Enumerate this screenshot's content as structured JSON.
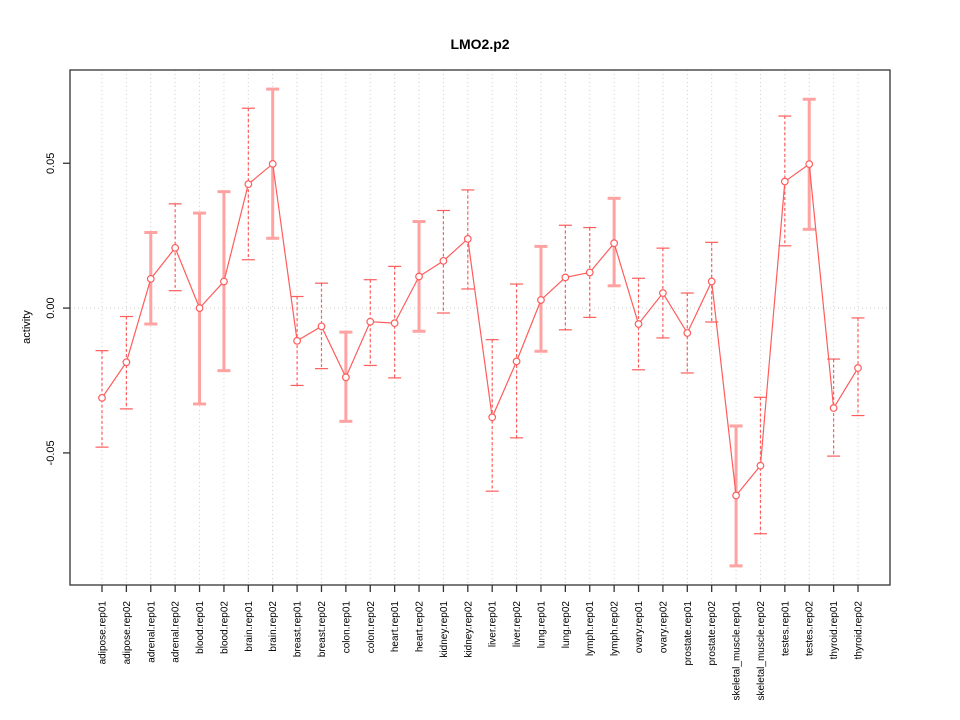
{
  "title": "LMO2.p2",
  "chart_data": {
    "type": "line",
    "title": "LMO2.p2",
    "xlabel": "",
    "ylabel": "activity",
    "ylim": [
      -0.0956,
      0.0822
    ],
    "yticks": [
      {
        "value": 0.05,
        "label": "0.05"
      },
      {
        "value": 0.0,
        "label": "0.00"
      },
      {
        "value": -0.05,
        "label": "-0.05"
      }
    ],
    "legend": "none",
    "grid": {
      "vertical": "dotted line at every category",
      "horizontal": "dotted line at 0 only"
    },
    "colors": {
      "series": "#ff5c5c",
      "thick_bar": "#ffa2a2",
      "grid": "#cfcfcf",
      "axis": "#333333",
      "text": "#000000",
      "marker_fill": "#ffffff"
    },
    "error_bar_styles_note": "bar_style dashed = thin dashed red whiskers; thick = wide solid pink whiskers",
    "points": [
      {
        "category": "adipose.rep01",
        "value": -0.031,
        "lower": -0.048,
        "upper": -0.0147,
        "bar_style": "dashed"
      },
      {
        "category": "adipose.rep02",
        "value": -0.0187,
        "lower": -0.0348,
        "upper": -0.0029,
        "bar_style": "dashed"
      },
      {
        "category": "adrenal.rep01",
        "value": 0.0101,
        "lower": -0.0055,
        "upper": 0.0261,
        "bar_style": "thick"
      },
      {
        "category": "adrenal.rep02",
        "value": 0.0208,
        "lower": 0.006,
        "upper": 0.036,
        "bar_style": "dashed"
      },
      {
        "category": "blood.rep01",
        "value": 0.0,
        "lower": -0.0331,
        "upper": 0.0328,
        "bar_style": "thick"
      },
      {
        "category": "blood.rep02",
        "value": 0.0092,
        "lower": -0.0216,
        "upper": 0.0402,
        "bar_style": "thick"
      },
      {
        "category": "brain.rep01",
        "value": 0.0428,
        "lower": 0.0167,
        "upper": 0.069,
        "bar_style": "dashed"
      },
      {
        "category": "brain.rep02",
        "value": 0.0498,
        "lower": 0.0241,
        "upper": 0.0756,
        "bar_style": "thick"
      },
      {
        "category": "breast.rep01",
        "value": -0.0113,
        "lower": -0.0267,
        "upper": 0.004,
        "bar_style": "dashed"
      },
      {
        "category": "breast.rep02",
        "value": -0.0063,
        "lower": -0.0209,
        "upper": 0.0086,
        "bar_style": "dashed"
      },
      {
        "category": "colon.rep01",
        "value": -0.0239,
        "lower": -0.0391,
        "upper": -0.0083,
        "bar_style": "thick"
      },
      {
        "category": "colon.rep02",
        "value": -0.0047,
        "lower": -0.0198,
        "upper": 0.0098,
        "bar_style": "dashed"
      },
      {
        "category": "heart.rep01",
        "value": -0.0052,
        "lower": -0.0241,
        "upper": 0.0144,
        "bar_style": "dashed"
      },
      {
        "category": "heart.rep02",
        "value": 0.0109,
        "lower": -0.008,
        "upper": 0.0299,
        "bar_style": "thick"
      },
      {
        "category": "kidney.rep01",
        "value": 0.0163,
        "lower": -0.0017,
        "upper": 0.0337,
        "bar_style": "dashed"
      },
      {
        "category": "kidney.rep02",
        "value": 0.0239,
        "lower": 0.0066,
        "upper": 0.0408,
        "bar_style": "dashed"
      },
      {
        "category": "liver.rep01",
        "value": -0.0377,
        "lower": -0.0632,
        "upper": -0.0109,
        "bar_style": "dashed"
      },
      {
        "category": "liver.rep02",
        "value": -0.0184,
        "lower": -0.0448,
        "upper": 0.0083,
        "bar_style": "dashed"
      },
      {
        "category": "lung.rep01",
        "value": 0.0028,
        "lower": -0.0149,
        "upper": 0.0213,
        "bar_style": "thick"
      },
      {
        "category": "lung.rep02",
        "value": 0.0106,
        "lower": -0.0075,
        "upper": 0.0286,
        "bar_style": "dashed"
      },
      {
        "category": "lymph.rep01",
        "value": 0.0123,
        "lower": -0.0032,
        "upper": 0.0278,
        "bar_style": "dashed"
      },
      {
        "category": "lymph.rep02",
        "value": 0.0224,
        "lower": 0.0077,
        "upper": 0.0379,
        "bar_style": "thick"
      },
      {
        "category": "ovary.rep01",
        "value": -0.0055,
        "lower": -0.0213,
        "upper": 0.0103,
        "bar_style": "dashed"
      },
      {
        "category": "ovary.rep02",
        "value": 0.0052,
        "lower": -0.0103,
        "upper": 0.0207,
        "bar_style": "dashed"
      },
      {
        "category": "prostate.rep01",
        "value": -0.0086,
        "lower": -0.0224,
        "upper": 0.0052,
        "bar_style": "dashed"
      },
      {
        "category": "prostate.rep02",
        "value": 0.0092,
        "lower": -0.0048,
        "upper": 0.0227,
        "bar_style": "dashed"
      },
      {
        "category": "skeletal_muscle.rep01",
        "value": -0.0647,
        "lower": -0.089,
        "upper": -0.0407,
        "bar_style": "thick"
      },
      {
        "category": "skeletal_muscle.rep02",
        "value": -0.0544,
        "lower": -0.0779,
        "upper": -0.0308,
        "bar_style": "dashed"
      },
      {
        "category": "testes.rep01",
        "value": 0.0437,
        "lower": 0.0215,
        "upper": 0.0663,
        "bar_style": "dashed"
      },
      {
        "category": "testes.rep02",
        "value": 0.0497,
        "lower": 0.0272,
        "upper": 0.0721,
        "bar_style": "thick"
      },
      {
        "category": "thyroid.rep01",
        "value": -0.0345,
        "lower": -0.0511,
        "upper": -0.0176,
        "bar_style": "dashed"
      },
      {
        "category": "thyroid.rep02",
        "value": -0.0207,
        "lower": -0.0371,
        "upper": -0.0034,
        "bar_style": "dashed"
      }
    ]
  }
}
